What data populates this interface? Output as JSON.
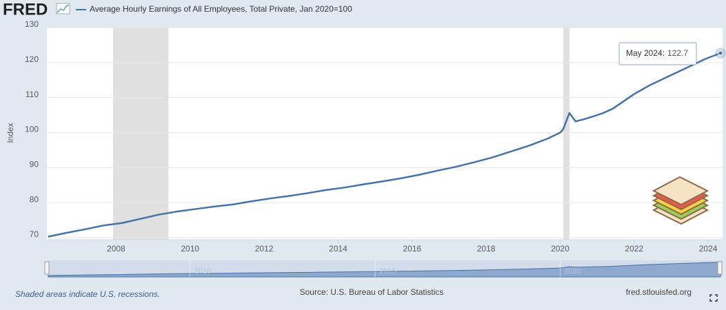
{
  "chart_data": {
    "type": "line",
    "logo": "FRED",
    "y_label": "Index",
    "x": [
      "2006-03",
      "2006-09",
      "2007-03",
      "2007-09",
      "2008-03",
      "2008-09",
      "2009-03",
      "2009-09",
      "2010-03",
      "2010-09",
      "2011-03",
      "2011-09",
      "2012-03",
      "2012-09",
      "2013-03",
      "2013-09",
      "2014-03",
      "2014-09",
      "2015-03",
      "2015-09",
      "2016-03",
      "2016-09",
      "2017-03",
      "2017-09",
      "2018-03",
      "2018-09",
      "2019-03",
      "2019-09",
      "2020-01",
      "2020-02",
      "2020-04",
      "2020-06",
      "2020-09",
      "2020-12",
      "2021-03",
      "2021-06",
      "2021-09",
      "2022-01",
      "2022-06",
      "2022-12",
      "2023-06",
      "2023-12",
      "2024-05"
    ],
    "series": [
      {
        "name": "Average Hourly Earnings of All Employees, Total Private, Jan 2020=100",
        "color": "#4572a7",
        "values": [
          70.3,
          71.4,
          72.4,
          73.5,
          74.2,
          75.4,
          76.6,
          77.5,
          78.2,
          78.9,
          79.5,
          80.4,
          81.2,
          81.9,
          82.7,
          83.6,
          84.3,
          85.2,
          86.0,
          86.9,
          87.9,
          89.1,
          90.2,
          91.5,
          92.9,
          94.6,
          96.3,
          98.3,
          100.0,
          101.0,
          105.6,
          103.2,
          103.9,
          104.7,
          105.6,
          106.8,
          108.6,
          111.0,
          113.5,
          116.0,
          118.5,
          121.0,
          122.7
        ]
      }
    ],
    "xlim": [
      "2006-03",
      "2024-05"
    ],
    "xticks": [
      "2008",
      "2010",
      "2012",
      "2014",
      "2016",
      "2018",
      "2020",
      "2022",
      "2024"
    ],
    "ylim": [
      70,
      130
    ],
    "yticks": [
      70,
      80,
      90,
      100,
      110,
      120,
      130
    ],
    "grid": true,
    "recessions": [
      [
        "2007-12",
        "2009-06"
      ],
      [
        "2020-02",
        "2020-04"
      ]
    ],
    "tooltip_label": "May 2024:",
    "navigator_ticks": [
      "2010",
      "2015",
      "2020"
    ],
    "note": "Shaded areas indicate U.S. recessions.",
    "source": "Source: U.S. Bureau of Labor Statistics",
    "site": "fred.stlouisfed.org"
  }
}
